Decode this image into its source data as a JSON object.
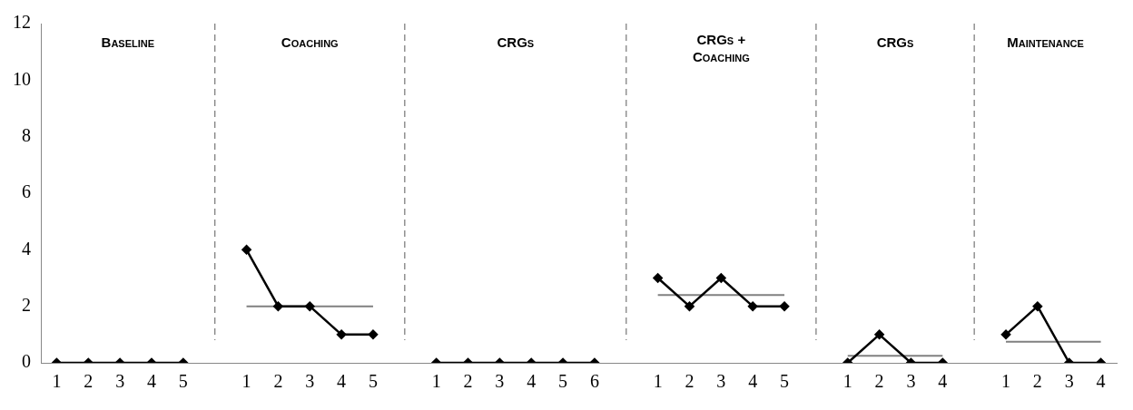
{
  "chart_data": {
    "type": "line",
    "categories": [
      "1",
      "2",
      "3",
      "4",
      "5",
      null,
      "1",
      "2",
      "3",
      "4",
      "5",
      null,
      "1",
      "2",
      "3",
      "4",
      "5",
      "6",
      null,
      "1",
      "2",
      "3",
      "4",
      "5",
      null,
      "1",
      "2",
      "3",
      "4",
      null,
      "1",
      "2",
      "3",
      "4"
    ],
    "series": [
      {
        "color": "#000000",
        "marker": "diamond",
        "values": [
          0,
          0,
          0,
          0,
          0,
          null,
          4,
          2,
          2,
          1,
          1,
          null,
          0,
          0,
          0,
          0,
          0,
          0,
          null,
          3,
          2,
          3,
          2,
          2,
          null,
          0,
          1,
          0,
          0,
          null,
          1,
          2,
          0,
          0
        ]
      },
      {
        "color": "#808080",
        "marker": "none",
        "values": [
          null,
          null,
          null,
          null,
          null,
          null,
          2,
          2,
          2,
          2,
          2,
          null,
          null,
          null,
          null,
          null,
          null,
          null,
          null,
          null,
          null,
          null,
          null,
          null,
          null,
          null,
          null,
          null,
          null,
          null,
          null,
          null,
          null,
          null
        ]
      },
      {
        "color": "#808080",
        "marker": "none",
        "values": [
          null,
          null,
          null,
          null,
          null,
          null,
          null,
          null,
          null,
          null,
          null,
          null,
          null,
          null,
          null,
          null,
          null,
          null,
          null,
          2.4,
          2.4,
          2.4,
          2.4,
          2.4,
          null,
          null,
          null,
          null,
          null,
          null,
          null,
          null,
          null,
          null
        ]
      },
      {
        "color": "#808080",
        "marker": "none",
        "values": [
          null,
          null,
          null,
          null,
          null,
          null,
          null,
          null,
          null,
          null,
          null,
          null,
          null,
          null,
          null,
          null,
          null,
          null,
          null,
          null,
          null,
          null,
          null,
          null,
          null,
          0.25,
          0.25,
          0.25,
          0.25,
          null,
          null,
          null,
          null,
          null
        ]
      },
      {
        "color": "#808080",
        "marker": "none",
        "values": [
          null,
          null,
          null,
          null,
          null,
          null,
          null,
          null,
          null,
          null,
          null,
          null,
          null,
          null,
          null,
          null,
          null,
          null,
          null,
          null,
          null,
          null,
          null,
          null,
          null,
          null,
          null,
          null,
          null,
          null,
          0.75,
          0.75,
          0.75,
          0.75
        ]
      }
    ],
    "ylim": [
      0,
      12
    ],
    "yticks": [
      0,
      2,
      4,
      6,
      8,
      10,
      12
    ],
    "annotations": [
      "Baseline",
      "Coaching",
      "CRGs",
      "CRGs + Coaching",
      "CRGs",
      "Maintenance"
    ],
    "grid": false,
    "legend": false
  }
}
